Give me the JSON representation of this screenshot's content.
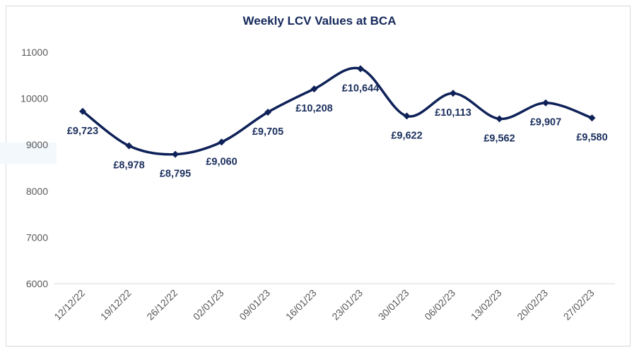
{
  "chart_data": {
    "type": "line",
    "title": "Weekly LCV Values at BCA",
    "categories": [
      "12/12/22",
      "19/12/22",
      "26/12/22",
      "02/01/23",
      "09/01/23",
      "16/01/23",
      "23/01/23",
      "30/01/23",
      "06/02/23",
      "13/02/23",
      "20/02/23",
      "27/02/23"
    ],
    "values": [
      9723,
      8978,
      8795,
      9060,
      9705,
      10208,
      10644,
      9622,
      10113,
      9562,
      9907,
      9580
    ],
    "data_labels": [
      "£9,723",
      "£8,978",
      "£8,795",
      "£9,060",
      "£9,705",
      "£10,208",
      "£10,644",
      "£9,622",
      "£10,113",
      "£9,562",
      "£9,907",
      "£9,580"
    ],
    "yticks": [
      "6000",
      "7000",
      "8000",
      "9000",
      "10000",
      "11000"
    ],
    "ylim": [
      6000,
      11000
    ],
    "xlabel": "",
    "ylabel": "",
    "grid": false,
    "smooth": true,
    "marker": "diamond",
    "line_color": "#0e2158",
    "label_color": "#1b2f5e"
  }
}
